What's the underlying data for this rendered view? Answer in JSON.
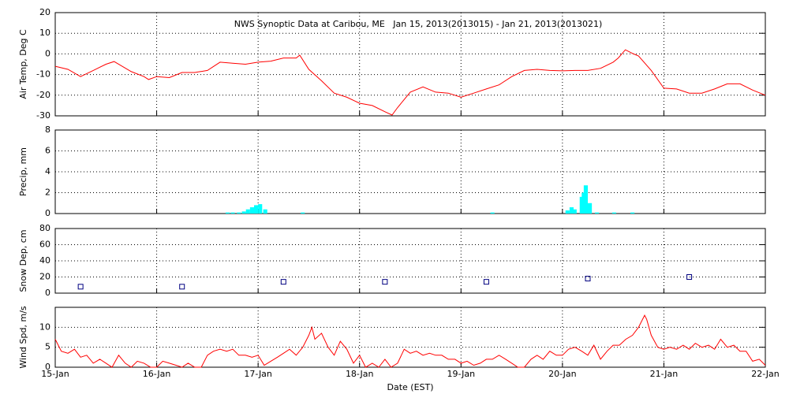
{
  "chart_data": [
    {
      "type": "line",
      "title": "NWS Synoptic Data at Caribou, ME   Jan 15, 2013(2013015) - Jan 21, 2013(2013021)",
      "y_label": "Air Temp, Deg C",
      "color": "#ff0000",
      "grid": true,
      "xlim": [
        0,
        7
      ],
      "xticks": [
        0,
        1,
        2,
        3,
        4,
        5,
        6,
        7
      ],
      "ylim": [
        -30,
        20
      ],
      "yticks": [
        -30,
        -20,
        -10,
        0,
        10,
        20
      ],
      "x": [
        0,
        0.125,
        0.25,
        0.375,
        0.5,
        0.58,
        0.75,
        0.875,
        0.92,
        1.0,
        1.125,
        1.25,
        1.375,
        1.5,
        1.625,
        1.75,
        1.875,
        2.0,
        2.125,
        2.25,
        2.375,
        2.41,
        2.5,
        2.625,
        2.75,
        2.875,
        3.0,
        3.125,
        3.25,
        3.32,
        3.375,
        3.5,
        3.625,
        3.75,
        3.875,
        4.0,
        4.125,
        4.25,
        4.375,
        4.5,
        4.625,
        4.75,
        4.875,
        5.0,
        5.125,
        5.25,
        5.375,
        5.5,
        5.55,
        5.62,
        5.7,
        5.75,
        5.875,
        6.0,
        6.125,
        6.25,
        6.375,
        6.5,
        6.625,
        6.75,
        6.875,
        7.0
      ],
      "values": [
        -6,
        -7.5,
        -11,
        -8,
        -5,
        -3.7,
        -8.6,
        -11,
        -12.4,
        -11,
        -11.5,
        -9,
        -9,
        -8,
        -4,
        -4.5,
        -5,
        -4,
        -3.5,
        -2,
        -2,
        -0.6,
        -7.5,
        -13,
        -19,
        -21,
        -23.9,
        -25,
        -28,
        -29.6,
        -26,
        -18.5,
        -16,
        -18.5,
        -19,
        -21,
        -19,
        -17,
        -15,
        -11,
        -8,
        -7.5,
        -8,
        -8.2,
        -8,
        -8,
        -7,
        -4,
        -2,
        2,
        0,
        -1,
        -8,
        -16.6,
        -17,
        -19,
        -19,
        -17,
        -14.5,
        -14.5,
        -17.5,
        -20
      ]
    },
    {
      "type": "bar",
      "y_label": "Precip, mm",
      "color": "#00ffff",
      "grid": true,
      "xlim": [
        0,
        7
      ],
      "xticks": [
        0,
        1,
        2,
        3,
        4,
        5,
        6,
        7
      ],
      "ylim": [
        0,
        8
      ],
      "yticks": [
        0,
        2,
        4,
        6,
        8
      ],
      "x": [
        1.7,
        1.75,
        1.81,
        1.86,
        1.9,
        1.94,
        1.98,
        2.02,
        2.07,
        2.44,
        4.31,
        5.05,
        5.09,
        5.12,
        5.19,
        5.21,
        5.23,
        5.27,
        5.34,
        5.51,
        5.69
      ],
      "values": [
        0.1,
        0.1,
        0.1,
        0.2,
        0.4,
        0.6,
        0.8,
        0.9,
        0.4,
        0.1,
        0.1,
        0.3,
        0.6,
        0.4,
        1.6,
        2.0,
        2.7,
        1.0,
        0.1,
        0.1,
        0.1
      ]
    },
    {
      "type": "scatter",
      "y_label": "Snow Dep, cm",
      "color": "#000080",
      "grid": true,
      "xlim": [
        0,
        7
      ],
      "xticks": [
        0,
        1,
        2,
        3,
        4,
        5,
        6,
        7
      ],
      "ylim": [
        0,
        80
      ],
      "yticks": [
        0,
        20,
        40,
        60,
        80
      ],
      "x": [
        0.25,
        1.25,
        2.25,
        3.25,
        4.25,
        5.25,
        6.25
      ],
      "values": [
        8,
        8,
        14,
        14,
        14,
        18,
        20
      ]
    },
    {
      "type": "line",
      "y_label": "Wind Spd, m/s",
      "x_label": "Date (EST)",
      "color": "#ff0000",
      "grid": true,
      "xlim": [
        0,
        7
      ],
      "xticks": [
        {
          "value": 0,
          "label": "15-Jan"
        },
        {
          "value": 1,
          "label": "16-Jan"
        },
        {
          "value": 2,
          "label": "17-Jan"
        },
        {
          "value": 3,
          "label": "18-Jan"
        },
        {
          "value": 4,
          "label": "19-Jan"
        },
        {
          "value": 5,
          "label": "20-Jan"
        },
        {
          "value": 6,
          "label": "21-Jan"
        },
        {
          "value": 7,
          "label": "22-Jan"
        }
      ],
      "ylim": [
        0,
        15
      ],
      "yticks": [
        0,
        5,
        10
      ],
      "x": [
        0,
        0.06,
        0.125,
        0.19,
        0.25,
        0.31,
        0.375,
        0.44,
        0.5,
        0.56,
        0.625,
        0.69,
        0.75,
        0.81,
        0.875,
        0.94,
        1.0,
        1.06,
        1.125,
        1.19,
        1.25,
        1.31,
        1.375,
        1.44,
        1.5,
        1.56,
        1.625,
        1.69,
        1.75,
        1.81,
        1.875,
        1.94,
        2.0,
        2.06,
        2.125,
        2.19,
        2.25,
        2.31,
        2.375,
        2.44,
        2.5,
        2.53,
        2.56,
        2.625,
        2.69,
        2.75,
        2.81,
        2.875,
        2.94,
        3.0,
        3.06,
        3.125,
        3.19,
        3.25,
        3.31,
        3.375,
        3.44,
        3.5,
        3.56,
        3.625,
        3.69,
        3.75,
        3.81,
        3.875,
        3.94,
        4.0,
        4.06,
        4.125,
        4.19,
        4.25,
        4.31,
        4.375,
        4.44,
        4.5,
        4.56,
        4.625,
        4.69,
        4.75,
        4.81,
        4.875,
        4.94,
        5.0,
        5.06,
        5.125,
        5.19,
        5.25,
        5.31,
        5.375,
        5.44,
        5.5,
        5.56,
        5.625,
        5.69,
        5.75,
        5.81,
        5.83,
        5.875,
        5.94,
        6.0,
        6.06,
        6.125,
        6.19,
        6.25,
        6.31,
        6.375,
        6.44,
        6.5,
        6.56,
        6.625,
        6.69,
        6.75,
        6.81,
        6.875,
        6.94,
        7.0
      ],
      "values": [
        7,
        4,
        3.5,
        4.5,
        2.5,
        3,
        1,
        2,
        1,
        0,
        3,
        1,
        0,
        1.5,
        1,
        0,
        0,
        1.5,
        1,
        0.5,
        0,
        1,
        0,
        0,
        3,
        4,
        4.5,
        4,
        4.5,
        3,
        3,
        2.5,
        3,
        0.5,
        1.5,
        2.5,
        3.5,
        4.5,
        3,
        5,
        8,
        10,
        7,
        8.5,
        5,
        3,
        6.5,
        4.5,
        1,
        3,
        0,
        1,
        0,
        2,
        0,
        1,
        4.5,
        3.5,
        4,
        3,
        3.5,
        3,
        3,
        2,
        2,
        1,
        1.5,
        0.5,
        1,
        2,
        2,
        3,
        2,
        1,
        0,
        0,
        2,
        3,
        2,
        4,
        3,
        3,
        4.5,
        5,
        4,
        3,
        5.5,
        2,
        4,
        5.5,
        5.5,
        7,
        8,
        10,
        13,
        12,
        8,
        5,
        4.5,
        5,
        4.5,
        5.5,
        4.5,
        6,
        5,
        5.5,
        4.5,
        7,
        5,
        5.5,
        4,
        4,
        1.5,
        2,
        0.5
      ]
    }
  ]
}
